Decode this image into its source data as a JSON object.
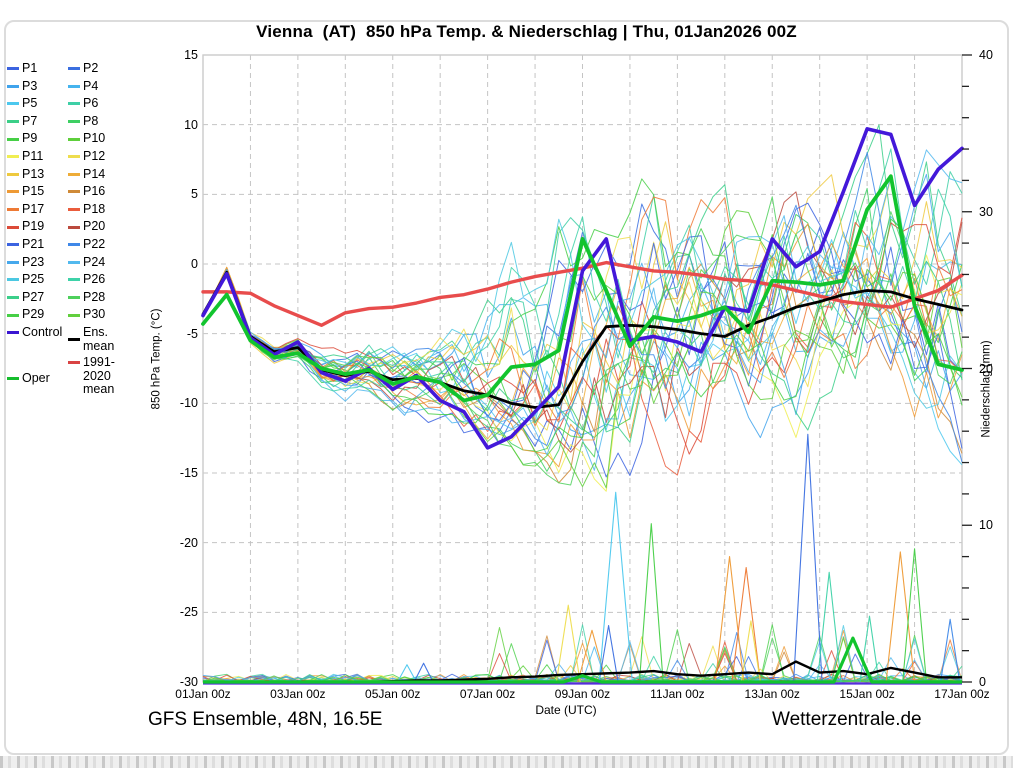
{
  "footer": {
    "left": "GFS Ensemble, 48N, 16.5E",
    "right": "Wetterzentrale.de"
  },
  "legend": {
    "members": [
      {
        "label": "P1",
        "color": "#3b63e0"
      },
      {
        "label": "P2",
        "color": "#3b6fe0"
      },
      {
        "label": "P3",
        "color": "#3fa3ec"
      },
      {
        "label": "P4",
        "color": "#46b4ee"
      },
      {
        "label": "P5",
        "color": "#4cc8ee"
      },
      {
        "label": "P6",
        "color": "#3ecfa6"
      },
      {
        "label": "P7",
        "color": "#3bcf88"
      },
      {
        "label": "P8",
        "color": "#3ecf63"
      },
      {
        "label": "P9",
        "color": "#46cf46"
      },
      {
        "label": "P10",
        "color": "#5ecf3b"
      },
      {
        "label": "P11",
        "color": "#f0ee52"
      },
      {
        "label": "P12",
        "color": "#eedd4e"
      },
      {
        "label": "P13",
        "color": "#eec93e"
      },
      {
        "label": "P14",
        "color": "#eeac38"
      },
      {
        "label": "P15",
        "color": "#ee9a35"
      },
      {
        "label": "P16",
        "color": "#cf8a38"
      },
      {
        "label": "P17",
        "color": "#ee7a35"
      },
      {
        "label": "P18",
        "color": "#ea5c3c"
      },
      {
        "label": "P19",
        "color": "#dc4a38"
      },
      {
        "label": "P20",
        "color": "#bb4a3e"
      },
      {
        "label": "P21",
        "color": "#3b63e0"
      },
      {
        "label": "P22",
        "color": "#3f88e8"
      },
      {
        "label": "P23",
        "color": "#46a8ec"
      },
      {
        "label": "P24",
        "color": "#52b9ee"
      },
      {
        "label": "P25",
        "color": "#4cc8e2"
      },
      {
        "label": "P26",
        "color": "#3ed2a8"
      },
      {
        "label": "P27",
        "color": "#3bcf8a"
      },
      {
        "label": "P28",
        "color": "#4ed05c"
      },
      {
        "label": "P29",
        "color": "#46cf46"
      },
      {
        "label": "P30",
        "color": "#62cf3e"
      }
    ],
    "control": {
      "label": "Control",
      "color": "#3a16d1"
    },
    "ens_mean": {
      "label": "Ens. mean",
      "color": "#000000"
    },
    "climate": {
      "label": "1991-2020 mean",
      "color": "#d94343"
    },
    "oper": {
      "label": "Oper",
      "color": "#16bd2d"
    }
  },
  "chart_data": {
    "type": "line",
    "title": "Vienna  (AT)  850 hPa Temp. & Niederschlag | Thu, 01Jan2026 00Z",
    "xlabel": "Date (UTC)",
    "ylabel_left": "850 hPa Temp. (°C)",
    "ylabel_right": "Niederschlag (mm)",
    "ylim_left": [
      -30,
      15
    ],
    "ylim_right": [
      0,
      40
    ],
    "x_range_days": [
      0,
      16
    ],
    "grid": "dashed, daily vertical + 5C horizontal",
    "time_step_days": 0.5,
    "x_ticks": [
      {
        "d": 0,
        "label": "01Jan 00z"
      },
      {
        "d": 2,
        "label": "03Jan 00z"
      },
      {
        "d": 4,
        "label": "05Jan 00z"
      },
      {
        "d": 6,
        "label": "07Jan 00z"
      },
      {
        "d": 8,
        "label": "09Jan 00z"
      },
      {
        "d": 10,
        "label": "11Jan 00z"
      },
      {
        "d": 12,
        "label": "13Jan 00z"
      },
      {
        "d": 14,
        "label": "15Jan 00z"
      },
      {
        "d": 16,
        "label": "17Jan 00z"
      }
    ],
    "y_left_ticks": [
      15,
      10,
      5,
      0,
      -5,
      -10,
      -15,
      -20,
      -25,
      -30
    ],
    "y_right_ticks": [
      40,
      30,
      20,
      10,
      0
    ],
    "series": [
      {
        "name": "1991-2020 mean",
        "color": "#e84c4c",
        "width": 3.4,
        "temp": [
          -2.0,
          -2.0,
          -2.1,
          -3.0,
          -3.7,
          -4.4,
          -3.5,
          -3.2,
          -3.1,
          -2.8,
          -2.4,
          -2.2,
          -1.8,
          -1.3,
          -0.9,
          -0.6,
          -0.3,
          0.1,
          -0.2,
          -0.5,
          -0.6,
          -0.8,
          -1.1,
          -1.2,
          -1.5,
          -1.9,
          -2.3,
          -2.7,
          -2.9,
          -3.1,
          -2.5,
          -1.9,
          -0.8
        ]
      },
      {
        "name": "Ens. mean",
        "color": "#000000",
        "width": 2.8,
        "temp": [
          -3.6,
          -0.6,
          -5.2,
          -6.3,
          -6.0,
          -7.6,
          -8.0,
          -7.7,
          -8.3,
          -8.2,
          -8.5,
          -9.1,
          -9.4,
          -10.0,
          -10.3,
          -10.1,
          -7.0,
          -4.5,
          -4.4,
          -4.5,
          -4.7,
          -5.0,
          -5.2,
          -4.4,
          -3.8,
          -3.1,
          -2.7,
          -2.2,
          -1.9,
          -2.0,
          -2.5,
          -2.9,
          -3.3
        ],
        "precip": [
          0,
          0,
          0,
          0,
          0,
          0,
          0,
          0,
          0.05,
          0.1,
          0.1,
          0.15,
          0.2,
          0.3,
          0.35,
          0.45,
          0.5,
          0.55,
          0.6,
          0.7,
          0.5,
          0.4,
          0.5,
          0.6,
          0.5,
          1.3,
          0.6,
          0.7,
          0.5,
          0.9,
          0.6,
          0.3,
          0.3
        ]
      },
      {
        "name": "Control",
        "color": "#4318d9",
        "width": 3.6,
        "temp": [
          -3.7,
          -0.7,
          -5.3,
          -6.5,
          -5.6,
          -7.8,
          -8.4,
          -7.5,
          -9.0,
          -8.0,
          -9.8,
          -10.6,
          -13.2,
          -12.4,
          -10.6,
          -8.8,
          -0.5,
          1.8,
          -5.5,
          -5.2,
          -5.6,
          -6.3,
          -3.1,
          -3.4,
          1.8,
          -0.2,
          0.9,
          5.2,
          9.7,
          9.3,
          4.2,
          6.8,
          8.3
        ],
        "precip_flat": 0
      },
      {
        "name": "Oper",
        "color": "#12c42e",
        "width": 3.8,
        "temp": [
          -4.3,
          -2.2,
          -5.5,
          -6.7,
          -6.4,
          -7.5,
          -7.9,
          -7.6,
          -8.6,
          -8.1,
          -8.5,
          -9.8,
          -9.4,
          -7.4,
          -7.2,
          -6.2,
          1.8,
          -1.9,
          -5.9,
          -3.8,
          -4.1,
          -3.7,
          -3.1,
          -4.9,
          -1.2,
          -1.3,
          -1.5,
          -1.2,
          3.9,
          6.3,
          -3.0,
          -7.2,
          -7.6
        ]
      }
    ],
    "oper_precip_spikes": [
      {
        "d": 8.0,
        "mm": 0.4
      },
      {
        "d": 13.7,
        "mm": 2.8
      }
    ],
    "ensemble": {
      "count": 30,
      "member_colors": [
        "#3b63e0",
        "#3b6fe0",
        "#3fa3ec",
        "#46b4ee",
        "#4cc8ee",
        "#3ecfa6",
        "#3bcf88",
        "#3ecf63",
        "#46cf46",
        "#5ecf3b",
        "#f0ee52",
        "#eedd4e",
        "#eec93e",
        "#eeac38",
        "#ee9a35",
        "#cf8a38",
        "#ee7a35",
        "#ea5c3c",
        "#dc4a38",
        "#bb4a3e",
        "#3b63e0",
        "#3f88e8",
        "#46a8ec",
        "#52b9ee",
        "#4cc8e2",
        "#3ed2a8",
        "#3bcf8a",
        "#4ed05c",
        "#46cf46",
        "#62cf3e"
      ],
      "envelope_upper": [
        -3.2,
        1.2,
        -4.2,
        -5.0,
        -4.6,
        -5.8,
        -6.0,
        -5.6,
        -6.0,
        -5.6,
        -5.2,
        -4.4,
        -3.2,
        0.5,
        -2.6,
        2.0,
        2.5,
        2.2,
        3.0,
        7.3,
        3.0,
        4.2,
        4.7,
        3.4,
        6.0,
        5.6,
        4.8,
        6.4,
        9.8,
        8.0,
        6.8,
        7.6,
        8.8
      ],
      "envelope_lower": [
        -4.4,
        -2.3,
        -6.6,
        -7.8,
        -7.6,
        -9.2,
        -9.8,
        -9.6,
        -10.6,
        -11.0,
        -11.2,
        -12.0,
        -12.6,
        -13.6,
        -14.6,
        -15.2,
        -15.2,
        -15.6,
        -14.2,
        -13.6,
        -14.2,
        -13.2,
        -12.6,
        -12.2,
        -11.2,
        -11.6,
        -10.6,
        -9.8,
        -8.2,
        -9.2,
        -10.2,
        -11.6,
        -13.4
      ]
    },
    "precip_spikes": [
      {
        "d": 4.3,
        "mm": 1.1,
        "color": "#4cc8ee",
        "hw": 0.2
      },
      {
        "d": 4.65,
        "mm": 1.2,
        "color": "#3b6fe0",
        "hw": 0.2
      },
      {
        "d": 7.7,
        "mm": 4.9,
        "color": "#eedd4e",
        "hw": 0.25
      },
      {
        "d": 8.2,
        "mm": 3.3,
        "color": "#ee9a35",
        "hw": 0.3
      },
      {
        "d": 8.55,
        "mm": 3.6,
        "color": "#3b6fe0",
        "hw": 0.2
      },
      {
        "d": 8.7,
        "mm": 12.1,
        "color": "#4cc8ee",
        "hw": 0.35
      },
      {
        "d": 9.45,
        "mm": 10.1,
        "color": "#46cf46",
        "hw": 0.25
      },
      {
        "d": 11.1,
        "mm": 8.0,
        "color": "#ee9a35",
        "hw": 0.3
      },
      {
        "d": 11.45,
        "mm": 7.3,
        "color": "#ee7a35",
        "hw": 0.3
      },
      {
        "d": 11.55,
        "mm": 3.9,
        "color": "#eedd4e",
        "hw": 0.2
      },
      {
        "d": 12.75,
        "mm": 15.8,
        "color": "#3b6fe0",
        "hw": 0.3
      },
      {
        "d": 13.2,
        "mm": 7.0,
        "color": "#3ed2a8",
        "hw": 0.25
      },
      {
        "d": 14.05,
        "mm": 4.2,
        "color": "#3ed2a8",
        "hw": 0.2
      },
      {
        "d": 14.7,
        "mm": 8.3,
        "color": "#ee9a35",
        "hw": 0.3
      },
      {
        "d": 15.0,
        "mm": 8.5,
        "color": "#46cf46",
        "hw": 0.25
      },
      {
        "d": 15.75,
        "mm": 4.0,
        "color": "#3f88e8",
        "hw": 0.2
      }
    ]
  }
}
